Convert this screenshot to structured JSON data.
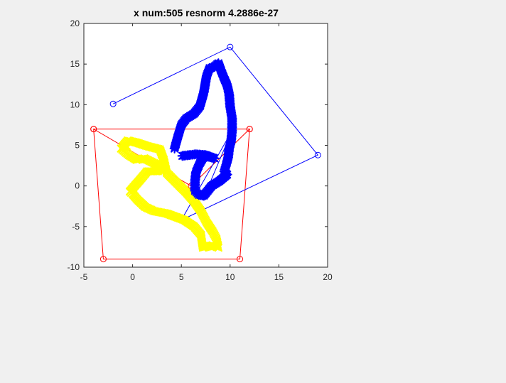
{
  "chart_data": {
    "type": "scatter",
    "title": "x num:505   resnorm 4.2886e-27",
    "xlim": [
      -5,
      20
    ],
    "ylim": [
      -10,
      20
    ],
    "xticks": [
      -5,
      0,
      5,
      10,
      15,
      20
    ],
    "yticks": [
      -10,
      -5,
      0,
      5,
      10,
      15,
      20
    ],
    "xticklabels": [
      "-5",
      "0",
      "5",
      "10",
      "15",
      "20"
    ],
    "yticklabels": [
      "-10",
      "-5",
      "0",
      "5",
      "10",
      "15",
      "20"
    ],
    "grid": false,
    "series": [
      {
        "color": "#ff0000",
        "marker": "circle",
        "line": "solid",
        "x": [
          -4,
          12,
          6,
          -4,
          -3,
          11,
          12
        ],
        "y": [
          7,
          7,
          0,
          7,
          -9,
          -9,
          7
        ]
      },
      {
        "color": "#0000ff",
        "marker": "circle",
        "line": "solid",
        "x": [
          -2,
          10,
          19,
          5,
          10.2,
          7.3
        ],
        "y": [
          10.1,
          17.1,
          3.8,
          -4.2,
          6.8,
          -1.4
        ]
      },
      {
        "color": "#ffff00",
        "marker": "x",
        "line": "none",
        "x": [
          -1,
          -0.5,
          0.5,
          1.5,
          2.8,
          3.2,
          3.5,
          4.5,
          5.5,
          6.3,
          7,
          7.6,
          8.2,
          8.6,
          8.8,
          8.2,
          7.2,
          7,
          6.3,
          5.3,
          3.5,
          2.2,
          1.3,
          0.5,
          0,
          -0.3,
          0.8,
          1.5,
          2.6,
          2.8,
          2.2,
          1.2,
          0.4,
          -0.4,
          -0.8,
          -1.2,
          -0.6
        ],
        "y": [
          4.9,
          5.6,
          5.3,
          4.9,
          4.5,
          3.2,
          1.6,
          0.4,
          -0.8,
          -1.9,
          -3.1,
          -4.5,
          -5.6,
          -6.5,
          -7.6,
          -7.3,
          -7.6,
          -6,
          -5,
          -4.2,
          -3.4,
          -3.1,
          -2.6,
          -1.7,
          -1,
          -0.7,
          0.8,
          1.8,
          1.8,
          2.3,
          2.8,
          3.4,
          3.2,
          3.8,
          4.2,
          4.6,
          4.9
        ]
      },
      {
        "color": "#0000ff",
        "marker": "asterisk",
        "line": "none",
        "x": [
          4.3,
          4.6,
          5,
          5.5,
          6.3,
          6.9,
          7.3,
          7.6,
          7.9,
          8.3,
          8.8,
          9.1,
          9.4,
          9.7,
          9.9,
          10,
          10.2,
          10.2,
          10.1,
          9.9,
          9.8,
          9.6,
          9.4,
          9.6,
          9.7,
          8.9,
          8.1,
          7.3,
          6.8,
          6.4,
          6.4,
          6.5,
          6.9,
          7.3,
          7.8,
          8.4,
          7.5,
          6.5,
          5.8,
          5.1
        ],
        "y": [
          4.6,
          5.9,
          7.5,
          8.3,
          8.9,
          9.8,
          11.5,
          13.6,
          14.5,
          14.6,
          15.1,
          14.1,
          13.2,
          12.4,
          11.3,
          9.8,
          8.3,
          6.8,
          5.5,
          4.6,
          3.5,
          2.6,
          1.8,
          1.5,
          1.4,
          0.6,
          0,
          -1.2,
          -1.1,
          -0.6,
          0.6,
          1.7,
          2.8,
          3.6,
          3.6,
          3.4,
          3.8,
          3.9,
          3.8,
          3.7
        ]
      }
    ]
  }
}
